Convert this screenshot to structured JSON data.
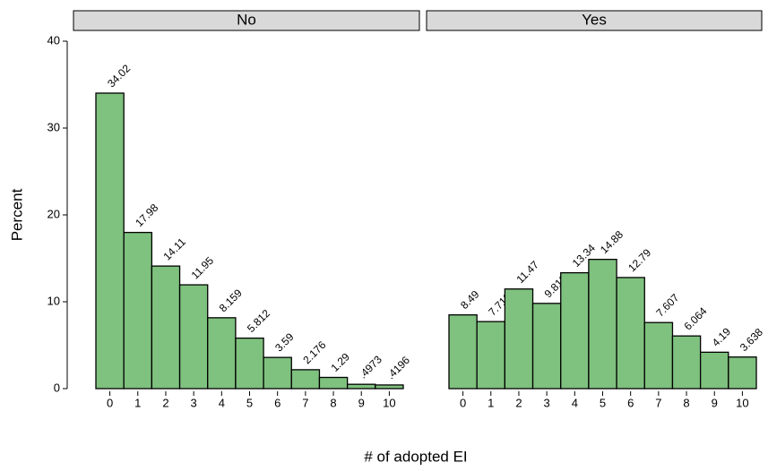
{
  "chart_data": [
    {
      "type": "bar",
      "title": "No",
      "ylabel": "Percent",
      "xlabel": "# of adopted EI",
      "categories": [
        "0",
        "1",
        "2",
        "3",
        "4",
        "5",
        "6",
        "7",
        "8",
        "9",
        "10"
      ],
      "values": [
        34.02,
        17.98,
        14.11,
        11.95,
        8.159,
        5.812,
        3.59,
        2.176,
        1.29,
        0.4973,
        0.4196
      ],
      "value_labels": [
        "34.02",
        "17.98",
        "14.11",
        "11.95",
        "8.159",
        "5.812",
        "3.59",
        "2.176",
        "1.29",
        ".4973",
        ".4196"
      ],
      "color": "#7fc17f",
      "ylim": [
        0,
        40
      ],
      "yticks": [
        0,
        10,
        20,
        30,
        40
      ]
    },
    {
      "type": "bar",
      "title": "Yes",
      "categories": [
        "0",
        "1",
        "2",
        "3",
        "4",
        "5",
        "6",
        "7",
        "8",
        "9",
        "10"
      ],
      "values": [
        8.49,
        7.718,
        11.47,
        9.813,
        13.34,
        14.88,
        12.79,
        7.607,
        6.064,
        4.19,
        3.638
      ],
      "value_labels": [
        "8.49",
        "7.718",
        "11.47",
        "9.813",
        "13.34",
        "14.88",
        "12.79",
        "7.607",
        "6.064",
        "4.19",
        "3.638"
      ],
      "color": "#7fc17f",
      "ylim": [
        0,
        40
      ]
    }
  ]
}
